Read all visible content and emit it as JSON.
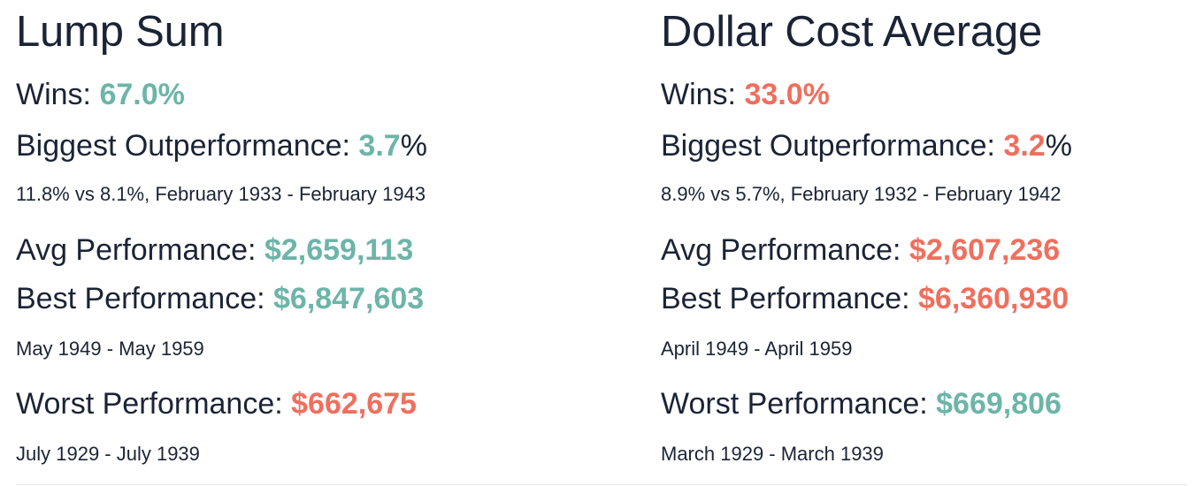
{
  "lump_sum": {
    "title": "Lump Sum",
    "wins_label": "Wins: ",
    "wins_value": "67.0%",
    "outperf_label": "Biggest Outperformance: ",
    "outperf_value": "3.7",
    "outperf_suffix": "%",
    "outperf_note": "11.8% vs 8.1%, February 1933 - February 1943",
    "avg_label": "Avg Performance: ",
    "avg_value": "$2,659,113",
    "best_label": "Best Performance: ",
    "best_value": "$6,847,603",
    "best_note": "May 1949 - May 1959",
    "worst_label": "Worst Performance: ",
    "worst_value": "$662,675",
    "worst_note": "July 1929 - July 1939"
  },
  "dca": {
    "title": "Dollar Cost Average",
    "wins_label": "Wins: ",
    "wins_value": "33.0%",
    "outperf_label": "Biggest Outperformance: ",
    "outperf_value": "3.2",
    "outperf_suffix": "%",
    "outperf_note": "8.9% vs 5.7%, February 1932 - February 1942",
    "avg_label": "Avg Performance: ",
    "avg_value": "$2,607,236",
    "best_label": "Best Performance: ",
    "best_value": "$6,360,930",
    "best_note": "April 1949 - April 1959",
    "worst_label": "Worst Performance: ",
    "worst_value": "$669,806",
    "worst_note": "March 1929 - March 1939"
  },
  "colors": {
    "good": "#6cb5a8",
    "bad": "#ef6f5e",
    "text": "#1b2436"
  }
}
